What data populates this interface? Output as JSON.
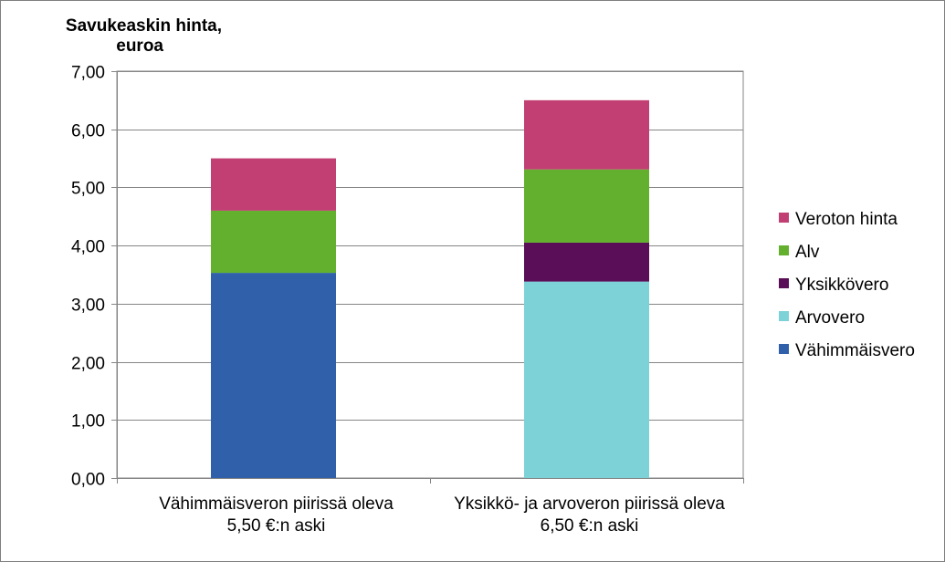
{
  "chart_data": {
    "type": "bar",
    "stacked": true,
    "ylabel_lines": [
      "Savukeaskin hinta,",
      "euroa"
    ],
    "ylim": [
      0,
      7
    ],
    "yticks": [
      "0,00",
      "1,00",
      "2,00",
      "3,00",
      "4,00",
      "5,00",
      "6,00",
      "7,00"
    ],
    "ytick_values": [
      0,
      1,
      2,
      3,
      4,
      5,
      6,
      7
    ],
    "grid": true,
    "legend_position": "right",
    "categories": [
      [
        "Vähimmäisveron piirissä oleva",
        "5,50 €:n aski"
      ],
      [
        "Yksikkö-  ja arvoveron piirissä oleva",
        "6,50 €:n aski"
      ]
    ],
    "series": [
      {
        "name": "Vähimmäisvero",
        "color": "#3060aa",
        "values": [
          3.53,
          0
        ]
      },
      {
        "name": "Arvovero",
        "color": "#7dd2d8",
        "values": [
          0,
          3.38
        ]
      },
      {
        "name": "Yksikkövero",
        "color": "#5a0e58",
        "values": [
          0,
          0.67
        ]
      },
      {
        "name": "Alv",
        "color": "#62b02e",
        "values": [
          1.07,
          1.26
        ]
      },
      {
        "name": "Veroton hinta",
        "color": "#c23f73",
        "values": [
          0.9,
          1.19
        ]
      }
    ]
  }
}
